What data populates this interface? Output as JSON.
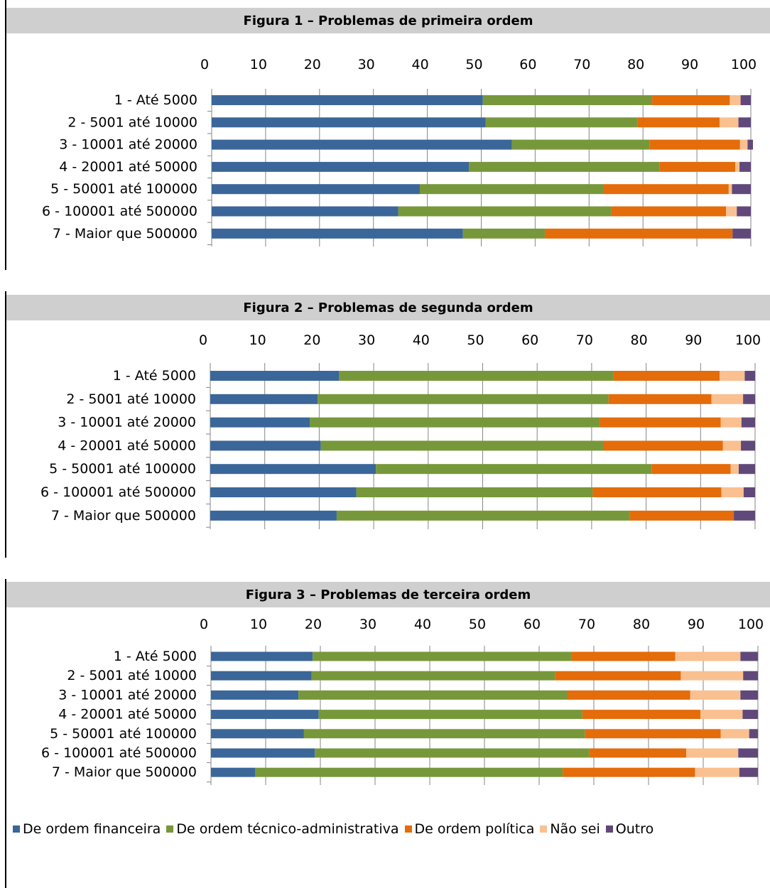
{
  "figures": [
    {
      "title": "Figura 1 – Problemas de primeira ordem"
    },
    {
      "title": "Figura 2 – Problemas de segunda ordem"
    },
    {
      "title": "Figura 3 – Problemas de terceira ordem"
    }
  ],
  "legend": [
    {
      "label": "De ordem financeira",
      "color": "#3b6699"
    },
    {
      "label": "De ordem técnico-administrativa",
      "color": "#77983a"
    },
    {
      "label": "De ordem política",
      "color": "#e46c0a"
    },
    {
      "label": "Não sei",
      "color": "#fac090"
    },
    {
      "label": "Outro",
      "color": "#60497a"
    }
  ],
  "chart_data": [
    {
      "type": "bar",
      "orientation": "horizontal-stacked",
      "title": "Figura 1 – Problemas de primeira ordem",
      "xlim": [
        0,
        100
      ],
      "x_ticks": [
        "0",
        "10",
        "20",
        "30",
        "40",
        "50",
        "60",
        "70",
        "80",
        "90",
        "100"
      ],
      "categories": [
        "1 - Até 5000",
        "2 - 5001 até 10000",
        "3 - 10001 até 20000",
        "4 - 20001 até 50000",
        "5 - 50001 até 100000",
        "6 - 100001 até 500000",
        "7 - Maior que 500000"
      ],
      "series": [
        {
          "name": "De ordem financeira",
          "values": [
            50.3,
            50.8,
            55.7,
            47.7,
            38.6,
            34.6,
            46.6
          ]
        },
        {
          "name": "De ordem técnico-administrativa",
          "values": [
            31.4,
            28.2,
            25.5,
            35.4,
            34.0,
            39.5,
            15.2
          ]
        },
        {
          "name": "De ordem política",
          "values": [
            14.4,
            15.2,
            16.8,
            14.0,
            23.3,
            21.3,
            34.8
          ]
        },
        {
          "name": "Não sei",
          "values": [
            2.0,
            3.5,
            1.4,
            0.8,
            0.6,
            2.0,
            0
          ]
        },
        {
          "name": "Outro",
          "values": [
            1.9,
            2.3,
            1.0,
            2.1,
            3.5,
            2.6,
            3.4
          ]
        }
      ]
    },
    {
      "type": "bar",
      "orientation": "horizontal-stacked",
      "title": "Figura 2 – Problemas de segunda ordem",
      "xlim": [
        0,
        100
      ],
      "x_ticks": [
        "0",
        "10",
        "20",
        "30",
        "40",
        "50",
        "60",
        "70",
        "80",
        "90",
        "100"
      ],
      "categories": [
        "1 - Até 5000",
        "2 - 5001 até 10000",
        "3 - 10001 até 20000",
        "4 - 20001 até 50000",
        "5 - 50001 até 100000",
        "6 - 100001 até 500000",
        "7 - Maior que 500000"
      ],
      "series": [
        {
          "name": "De ordem financeira",
          "values": [
            23.6,
            19.7,
            18.3,
            20.3,
            30.4,
            26.8,
            23.2
          ]
        },
        {
          "name": "De ordem técnico-administrativa",
          "values": [
            50.4,
            53.4,
            53.2,
            51.8,
            50.6,
            43.4,
            53.8
          ]
        },
        {
          "name": "De ordem política",
          "values": [
            19.5,
            18.9,
            22.2,
            22.0,
            14.5,
            23.6,
            19.1
          ]
        },
        {
          "name": "Não sei",
          "values": [
            4.6,
            5.8,
            3.8,
            3.3,
            1.5,
            4.1,
            0
          ]
        },
        {
          "name": "Outro",
          "values": [
            1.9,
            2.2,
            2.5,
            2.6,
            3.0,
            2.1,
            3.9
          ]
        }
      ]
    },
    {
      "type": "bar",
      "orientation": "horizontal-stacked",
      "title": "Figura 3 – Problemas de terceira ordem",
      "xlim": [
        0,
        100
      ],
      "x_ticks": [
        "0",
        "10",
        "20",
        "30",
        "40",
        "50",
        "60",
        "70",
        "80",
        "90",
        "100"
      ],
      "categories": [
        "1 - Até 5000",
        "2 - 5001 até 10000",
        "3 - 10001 até 20000",
        "4 - 20001 até 50000",
        "5 - 50001 até 100000",
        "6 - 100001 até 500000",
        "7 - Maior que 500000"
      ],
      "series": [
        {
          "name": "De ordem financeira",
          "values": [
            18.6,
            18.4,
            16.0,
            19.7,
            17.0,
            19.0,
            8.1
          ]
        },
        {
          "name": "De ordem técnico-administrativa",
          "values": [
            47.3,
            44.5,
            49.2,
            48.2,
            51.4,
            50.2,
            56.2
          ]
        },
        {
          "name": "De ordem política",
          "values": [
            19.0,
            23.0,
            22.4,
            21.6,
            24.8,
            17.7,
            24.2
          ]
        },
        {
          "name": "Não sei",
          "values": [
            11.9,
            11.4,
            9.2,
            7.7,
            5.2,
            9.5,
            8.1
          ]
        },
        {
          "name": "Outro",
          "values": [
            3.2,
            2.7,
            3.2,
            2.8,
            1.6,
            3.6,
            3.4
          ]
        }
      ]
    }
  ]
}
